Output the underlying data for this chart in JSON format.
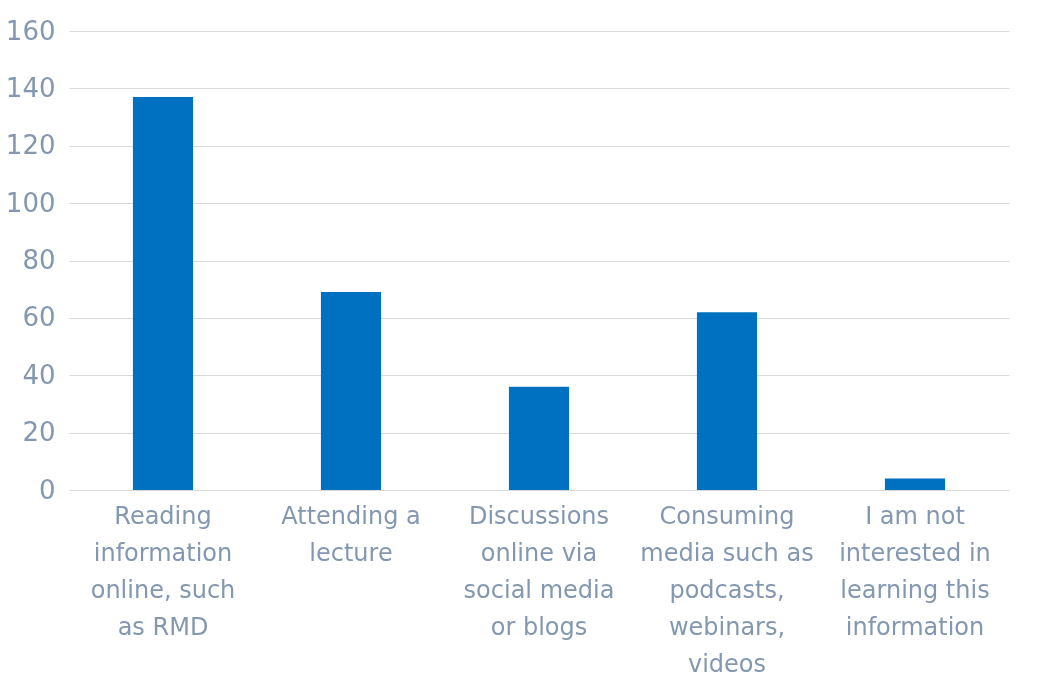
{
  "chart_data": {
    "type": "bar",
    "categories": [
      "Reading information online, such as RMD",
      "Attending a lecture",
      "Discussions online via social media or blogs",
      "Consuming media such as podcasts, webinars, videos",
      "I am not interested in learning this information"
    ],
    "values": [
      137,
      69,
      36,
      62,
      4
    ],
    "color": "#0070c0",
    "ylim": [
      0,
      160
    ],
    "yticks": [
      0,
      20,
      40,
      60,
      80,
      100,
      120,
      140,
      160
    ],
    "grid": "y"
  }
}
